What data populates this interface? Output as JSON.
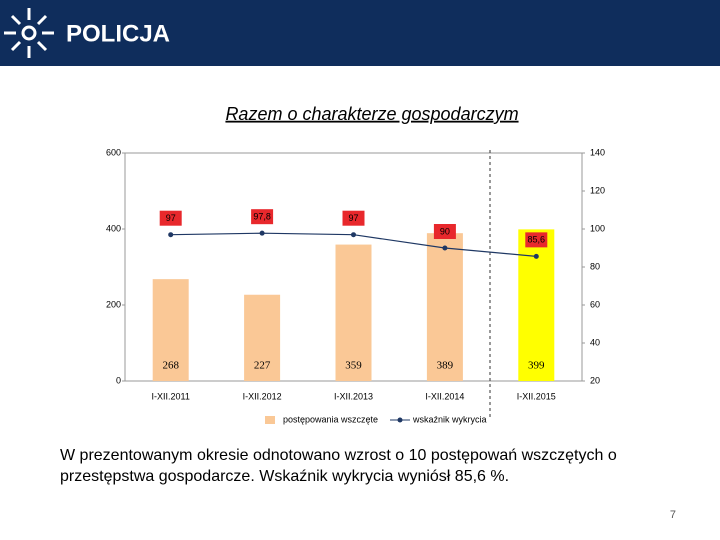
{
  "header": {
    "logo_text": "POLICJA"
  },
  "chart_data": {
    "type": "bar-line",
    "title": "Razem o charakterze gospodarczym",
    "categories": [
      "I-XII.2011",
      "I-XII.2012",
      "I-XII.2013",
      "I-XII.2014",
      "I-XII.2015"
    ],
    "series": [
      {
        "name": "postępowania wszczęte",
        "type": "bar",
        "colors": [
          "#fac896",
          "#fac896",
          "#fac896",
          "#fac896",
          "#ffff00"
        ],
        "color": "#fac896",
        "values": [
          268,
          227,
          359,
          389,
          399
        ]
      },
      {
        "name": "wskaźnik wykrycia",
        "type": "line",
        "axis": "y2",
        "color": "#1f3864",
        "values": [
          97,
          97.8,
          97,
          90,
          85.6
        ],
        "value_labels": [
          "97",
          "97,8",
          "97",
          "90",
          "85,6"
        ]
      }
    ],
    "ylim": [
      0,
      600
    ],
    "yticks": [
      0,
      200,
      400,
      600
    ],
    "y2lim": [
      20,
      140
    ],
    "y2ticks": [
      20,
      40,
      60,
      80,
      100,
      120,
      140
    ]
  },
  "text": "W prezentowanym okresie odnotowano wzrost o 10 postępowań wszczętych o przestępstwa gospodarcze. Wskaźnik wykrycia wyniósł 85,6 %.",
  "page_number": "7"
}
